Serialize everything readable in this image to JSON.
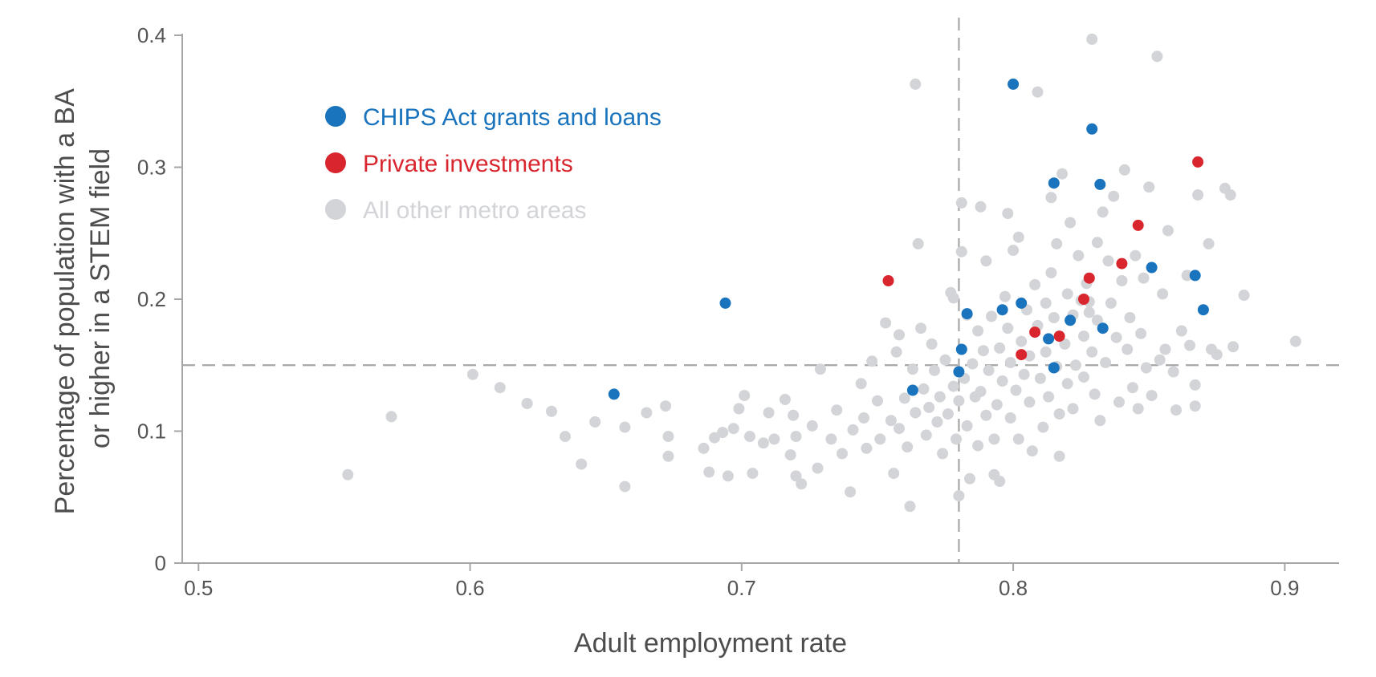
{
  "chart_data": {
    "type": "scatter",
    "xlabel": "Adult employment rate",
    "ylabel": "Percentage of population with a BA or higher in a STEM field",
    "ylabel_lines": [
      "Percentage of population with a BA",
      "or higher in a STEM field"
    ],
    "xlim": [
      0.494,
      0.92
    ],
    "ylim": [
      0,
      0.4
    ],
    "x_ticks": [
      0.5,
      0.6,
      0.7,
      0.8,
      0.9
    ],
    "x_tick_labels": [
      "0.5",
      "0.6",
      "0.7",
      "0.8",
      "0.9"
    ],
    "y_ticks": [
      0,
      0.1,
      0.2,
      0.3,
      0.4
    ],
    "y_tick_labels": [
      "0",
      "0.1",
      "0.2",
      "0.3",
      "0.4"
    ],
    "reference_lines": {
      "x": 0.78,
      "y": 0.15,
      "style": "dashed",
      "color": "#a6a6a6"
    },
    "grid": false,
    "legend_position": "top-left",
    "series": [
      {
        "name": "CHIPS Act grants and loans",
        "color": "#1a73bd",
        "points": [
          [
            0.653,
            0.128
          ],
          [
            0.694,
            0.197
          ],
          [
            0.763,
            0.131
          ],
          [
            0.78,
            0.145
          ],
          [
            0.781,
            0.162
          ],
          [
            0.783,
            0.189
          ],
          [
            0.796,
            0.192
          ],
          [
            0.8,
            0.363
          ],
          [
            0.803,
            0.197
          ],
          [
            0.813,
            0.17
          ],
          [
            0.815,
            0.148
          ],
          [
            0.815,
            0.288
          ],
          [
            0.821,
            0.184
          ],
          [
            0.829,
            0.329
          ],
          [
            0.832,
            0.287
          ],
          [
            0.833,
            0.178
          ],
          [
            0.851,
            0.224
          ],
          [
            0.867,
            0.218
          ],
          [
            0.87,
            0.192
          ]
        ]
      },
      {
        "name": "Private investments",
        "color": "#d9262e",
        "points": [
          [
            0.754,
            0.214
          ],
          [
            0.803,
            0.158
          ],
          [
            0.808,
            0.175
          ],
          [
            0.817,
            0.172
          ],
          [
            0.826,
            0.2
          ],
          [
            0.828,
            0.216
          ],
          [
            0.84,
            0.227
          ],
          [
            0.846,
            0.256
          ],
          [
            0.868,
            0.304
          ]
        ]
      },
      {
        "name": "All other metro areas",
        "color": "#d3d4d7",
        "points": [
          [
            0.555,
            0.067
          ],
          [
            0.571,
            0.111
          ],
          [
            0.601,
            0.143
          ],
          [
            0.611,
            0.133
          ],
          [
            0.621,
            0.121
          ],
          [
            0.63,
            0.115
          ],
          [
            0.635,
            0.096
          ],
          [
            0.641,
            0.075
          ],
          [
            0.646,
            0.107
          ],
          [
            0.657,
            0.058
          ],
          [
            0.657,
            0.103
          ],
          [
            0.665,
            0.114
          ],
          [
            0.672,
            0.119
          ],
          [
            0.673,
            0.081
          ],
          [
            0.673,
            0.096
          ],
          [
            0.686,
            0.087
          ],
          [
            0.688,
            0.069
          ],
          [
            0.69,
            0.095
          ],
          [
            0.693,
            0.099
          ],
          [
            0.695,
            0.066
          ],
          [
            0.697,
            0.102
          ],
          [
            0.699,
            0.117
          ],
          [
            0.701,
            0.127
          ],
          [
            0.703,
            0.096
          ],
          [
            0.704,
            0.068
          ],
          [
            0.708,
            0.091
          ],
          [
            0.71,
            0.114
          ],
          [
            0.712,
            0.094
          ],
          [
            0.716,
            0.124
          ],
          [
            0.718,
            0.082
          ],
          [
            0.719,
            0.112
          ],
          [
            0.72,
            0.066
          ],
          [
            0.72,
            0.096
          ],
          [
            0.722,
            0.06
          ],
          [
            0.726,
            0.104
          ],
          [
            0.728,
            0.072
          ],
          [
            0.729,
            0.147
          ],
          [
            0.733,
            0.094
          ],
          [
            0.735,
            0.116
          ],
          [
            0.737,
            0.083
          ],
          [
            0.74,
            0.054
          ],
          [
            0.741,
            0.101
          ],
          [
            0.744,
            0.136
          ],
          [
            0.745,
            0.11
          ],
          [
            0.746,
            0.087
          ],
          [
            0.748,
            0.153
          ],
          [
            0.75,
            0.123
          ],
          [
            0.751,
            0.094
          ],
          [
            0.753,
            0.182
          ],
          [
            0.755,
            0.108
          ],
          [
            0.756,
            0.068
          ],
          [
            0.757,
            0.16
          ],
          [
            0.758,
            0.102
          ],
          [
            0.758,
            0.173
          ],
          [
            0.76,
            0.125
          ],
          [
            0.761,
            0.088
          ],
          [
            0.762,
            0.043
          ],
          [
            0.763,
            0.147
          ],
          [
            0.764,
            0.114
          ],
          [
            0.764,
            0.363
          ],
          [
            0.765,
            0.242
          ],
          [
            0.766,
            0.178
          ],
          [
            0.767,
            0.132
          ],
          [
            0.768,
            0.097
          ],
          [
            0.769,
            0.118
          ],
          [
            0.77,
            0.166
          ],
          [
            0.771,
            0.146
          ],
          [
            0.772,
            0.107
          ],
          [
            0.773,
            0.126
          ],
          [
            0.774,
            0.083
          ],
          [
            0.775,
            0.154
          ],
          [
            0.776,
            0.113
          ],
          [
            0.777,
            0.205
          ],
          [
            0.778,
            0.201
          ],
          [
            0.778,
            0.134
          ],
          [
            0.779,
            0.094
          ],
          [
            0.78,
            0.051
          ],
          [
            0.78,
            0.123
          ],
          [
            0.781,
            0.236
          ],
          [
            0.781,
            0.273
          ],
          [
            0.782,
            0.14
          ],
          [
            0.783,
            0.104
          ],
          [
            0.783,
            0.188
          ],
          [
            0.784,
            0.064
          ],
          [
            0.785,
            0.151
          ],
          [
            0.786,
            0.126
          ],
          [
            0.787,
            0.176
          ],
          [
            0.787,
            0.089
          ],
          [
            0.788,
            0.13
          ],
          [
            0.788,
            0.27
          ],
          [
            0.789,
            0.161
          ],
          [
            0.79,
            0.229
          ],
          [
            0.79,
            0.112
          ],
          [
            0.791,
            0.146
          ],
          [
            0.792,
            0.187
          ],
          [
            0.793,
            0.094
          ],
          [
            0.793,
            0.067
          ],
          [
            0.794,
            0.12
          ],
          [
            0.795,
            0.062
          ],
          [
            0.795,
            0.163
          ],
          [
            0.796,
            0.138
          ],
          [
            0.797,
            0.202
          ],
          [
            0.798,
            0.178
          ],
          [
            0.798,
            0.265
          ],
          [
            0.799,
            0.11
          ],
          [
            0.799,
            0.152
          ],
          [
            0.8,
            0.237
          ],
          [
            0.801,
            0.131
          ],
          [
            0.802,
            0.094
          ],
          [
            0.802,
            0.247
          ],
          [
            0.803,
            0.168
          ],
          [
            0.804,
            0.143
          ],
          [
            0.805,
            0.192
          ],
          [
            0.806,
            0.157
          ],
          [
            0.806,
            0.122
          ],
          [
            0.807,
            0.085
          ],
          [
            0.808,
            0.211
          ],
          [
            0.809,
            0.18
          ],
          [
            0.809,
            0.357
          ],
          [
            0.81,
            0.14
          ],
          [
            0.811,
            0.103
          ],
          [
            0.812,
            0.197
          ],
          [
            0.812,
            0.16
          ],
          [
            0.813,
            0.126
          ],
          [
            0.814,
            0.22
          ],
          [
            0.814,
            0.277
          ],
          [
            0.815,
            0.186
          ],
          [
            0.816,
            0.149
          ],
          [
            0.816,
            0.242
          ],
          [
            0.817,
            0.113
          ],
          [
            0.817,
            0.081
          ],
          [
            0.818,
            0.295
          ],
          [
            0.819,
            0.166
          ],
          [
            0.82,
            0.204
          ],
          [
            0.82,
            0.136
          ],
          [
            0.821,
            0.258
          ],
          [
            0.822,
            0.188
          ],
          [
            0.822,
            0.117
          ],
          [
            0.823,
            0.15
          ],
          [
            0.824,
            0.233
          ],
          [
            0.825,
            0.199
          ],
          [
            0.826,
            0.172
          ],
          [
            0.826,
            0.141
          ],
          [
            0.827,
            0.212
          ],
          [
            0.828,
            0.198
          ],
          [
            0.828,
            0.19
          ],
          [
            0.829,
            0.16
          ],
          [
            0.829,
            0.397
          ],
          [
            0.83,
            0.128
          ],
          [
            0.831,
            0.243
          ],
          [
            0.831,
            0.184
          ],
          [
            0.832,
            0.108
          ],
          [
            0.833,
            0.266
          ],
          [
            0.834,
            0.152
          ],
          [
            0.835,
            0.229
          ],
          [
            0.836,
            0.197
          ],
          [
            0.837,
            0.278
          ],
          [
            0.838,
            0.171
          ],
          [
            0.839,
            0.122
          ],
          [
            0.84,
            0.214
          ],
          [
            0.841,
            0.298
          ],
          [
            0.842,
            0.162
          ],
          [
            0.843,
            0.186
          ],
          [
            0.844,
            0.133
          ],
          [
            0.845,
            0.233
          ],
          [
            0.846,
            0.117
          ],
          [
            0.847,
            0.174
          ],
          [
            0.848,
            0.216
          ],
          [
            0.849,
            0.148
          ],
          [
            0.85,
            0.285
          ],
          [
            0.851,
            0.127
          ],
          [
            0.853,
            0.384
          ],
          [
            0.854,
            0.154
          ],
          [
            0.855,
            0.204
          ],
          [
            0.856,
            0.162
          ],
          [
            0.857,
            0.252
          ],
          [
            0.859,
            0.145
          ],
          [
            0.86,
            0.116
          ],
          [
            0.862,
            0.176
          ],
          [
            0.864,
            0.218
          ],
          [
            0.865,
            0.165
          ],
          [
            0.867,
            0.119
          ],
          [
            0.867,
            0.135
          ],
          [
            0.868,
            0.279
          ],
          [
            0.872,
            0.242
          ],
          [
            0.873,
            0.162
          ],
          [
            0.875,
            0.158
          ],
          [
            0.878,
            0.284
          ],
          [
            0.88,
            0.279
          ],
          [
            0.881,
            0.164
          ],
          [
            0.885,
            0.203
          ],
          [
            0.904,
            0.168
          ]
        ]
      }
    ]
  }
}
